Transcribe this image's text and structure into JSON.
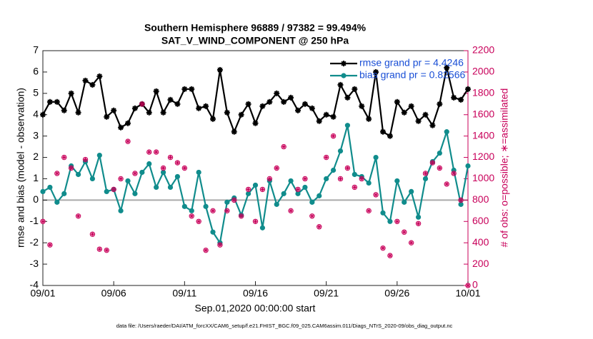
{
  "chart_data": {
    "type": "line",
    "title": "Southern Hemisphere 96889 / 97382 = 99.494%",
    "subtitle": "SAT_V_WIND_COMPONENT @ 250 hPa",
    "xlabel": "Sep.01,2020 00:00:00 start",
    "ylabel": "rmse and bias (model - observation)",
    "y2label": "# of obs: o=possible; ∗=assimilated",
    "footnote": "data file: /Users/raeder/DAI/ATM_forcXX/CAM6_setup/f.e21.FHIST_BGC.f09_025.CAM6assim.011/Diags_NTrS_2020-09/obs_diag_output.nc",
    "x": [
      0,
      0.5,
      1,
      1.5,
      2,
      2.5,
      3,
      3.5,
      4,
      4.5,
      5,
      5.5,
      6,
      6.5,
      7,
      7.5,
      8,
      8.5,
      9,
      9.5,
      10,
      10.5,
      11,
      11.5,
      12,
      12.5,
      13,
      13.5,
      14,
      14.5,
      15,
      15.5,
      16,
      16.5,
      17,
      17.5,
      18,
      18.5,
      19,
      19.5,
      20,
      20.5,
      21,
      21.5,
      22,
      22.5,
      23,
      23.5,
      24,
      24.5,
      25,
      25.5,
      26,
      26.5,
      27,
      27.5,
      28,
      28.5,
      29,
      29.5,
      30
    ],
    "xlim": [
      0,
      30
    ],
    "xticks": [
      {
        "value": 0,
        "label": "09/01"
      },
      {
        "value": 5,
        "label": "09/06"
      },
      {
        "value": 10,
        "label": "09/11"
      },
      {
        "value": 15,
        "label": "09/16"
      },
      {
        "value": 20,
        "label": "09/21"
      },
      {
        "value": 25,
        "label": "09/26"
      },
      {
        "value": 30,
        "label": "10/01"
      }
    ],
    "ylim": [
      -4,
      7
    ],
    "yticks": [
      -4,
      -3,
      -2,
      -1,
      0,
      1,
      2,
      3,
      4,
      5,
      6,
      7
    ],
    "y2lim": [
      0,
      2200
    ],
    "y2ticks": [
      0,
      200,
      400,
      600,
      800,
      1000,
      1200,
      1400,
      1600,
      1800,
      2000,
      2200
    ],
    "legend": "upper right",
    "series": [
      {
        "name": "rmse grand pr = 4.4246",
        "color": "#000000",
        "marker": "star",
        "values": [
          4.0,
          4.6,
          4.6,
          4.2,
          5.0,
          4.1,
          5.6,
          5.4,
          5.8,
          3.9,
          4.2,
          3.4,
          3.6,
          4.3,
          4.5,
          4.1,
          5.1,
          4.1,
          4.7,
          4.5,
          5.2,
          5.2,
          4.3,
          4.4,
          3.8,
          6.1,
          4.1,
          3.2,
          4.0,
          4.5,
          3.6,
          4.4,
          4.6,
          5.0,
          4.6,
          4.8,
          4.2,
          4.5,
          4.3,
          3.7,
          4.0,
          3.9,
          5.4,
          4.8,
          5.2,
          4.4,
          3.8,
          6.0,
          3.2,
          3.0,
          4.6,
          4.1,
          4.4,
          3.7,
          4.0,
          3.5,
          4.5,
          6.2,
          4.8,
          4.7,
          5.2
        ]
      },
      {
        "name": "bias grand pr = 0.82566",
        "color": "#108c8c",
        "marker": "circle",
        "values": [
          0.4,
          0.6,
          -0.1,
          0.3,
          1.6,
          1.2,
          1.8,
          1.0,
          2.1,
          0.4,
          0.5,
          -0.5,
          0.9,
          0.3,
          1.3,
          1.7,
          0.6,
          1.3,
          0.6,
          1.1,
          -0.3,
          -0.5,
          1.3,
          -0.3,
          -1.5,
          -2.0,
          -0.1,
          0.1,
          -0.7,
          0.3,
          0.7,
          -1.3,
          0.9,
          -0.2,
          0.3,
          0.9,
          0.3,
          0.6,
          -0.1,
          0.2,
          1.0,
          1.4,
          2.3,
          3.5,
          1.2,
          1.1,
          0.8,
          2.0,
          -0.6,
          -1.0,
          0.9,
          -0.1,
          0.4,
          -0.8,
          1.0,
          1.8,
          2.2,
          3.2,
          1.4,
          -0.2,
          1.6
        ]
      },
      {
        "color": "#c8005a",
        "marker": "o",
        "axis": "y2",
        "values": [
          600,
          380,
          1050,
          1200,
          1100,
          650,
          1180,
          480,
          340,
          330,
          900,
          1000,
          1350,
          1050,
          1700,
          1250,
          1250,
          1100,
          1200,
          1150,
          1100,
          650,
          600,
          330,
          700,
          380,
          700,
          800,
          650,
          900,
          600,
          900,
          1000,
          1100,
          1300,
          700,
          900,
          1000,
          650,
          550,
          1200,
          1400,
          1000,
          1100,
          920,
          1000,
          700,
          850,
          350,
          280,
          600,
          500,
          400,
          580,
          1050,
          1150,
          1100,
          950,
          1050,
          800,
          0
        ]
      },
      {
        "color": "#c8005a",
        "marker": "asterisk",
        "axis": "y2",
        "values": [
          600,
          380,
          1050,
          1200,
          1100,
          650,
          1180,
          480,
          340,
          330,
          900,
          1000,
          1350,
          1050,
          1700,
          1250,
          1250,
          1100,
          1200,
          1150,
          1100,
          650,
          600,
          330,
          700,
          380,
          700,
          800,
          650,
          900,
          600,
          900,
          1000,
          1100,
          1300,
          700,
          900,
          1000,
          650,
          550,
          1200,
          1400,
          1000,
          1100,
          920,
          1000,
          700,
          850,
          350,
          280,
          600,
          500,
          400,
          580,
          1050,
          1150,
          1100,
          950,
          1050,
          800,
          0
        ]
      }
    ]
  }
}
